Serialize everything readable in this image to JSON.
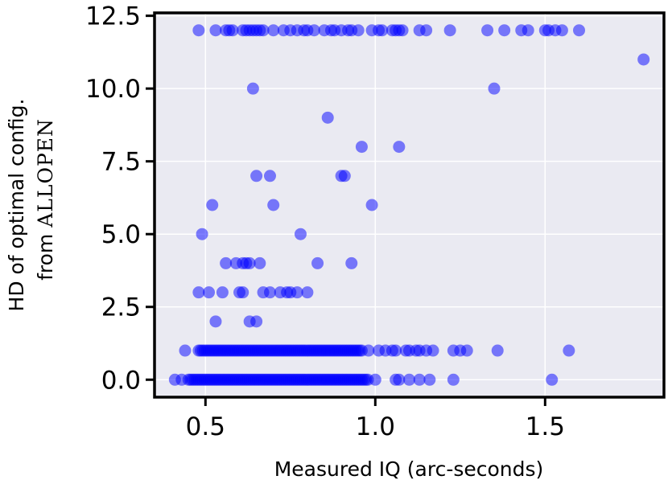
{
  "chart_data": {
    "type": "scatter",
    "xlabel": "Measured IQ (arc-seconds)",
    "ylabel_line1": "HD of optimal config.",
    "ylabel_line2_prefix": "from ",
    "ylabel_line2_name": "ALLOPEN",
    "xlim": [
      0.35,
      1.85
    ],
    "ylim": [
      -0.6,
      12.6
    ],
    "xticks": [
      0.5,
      1.0,
      1.5
    ],
    "xtick_labels": [
      "0.5",
      "1.0",
      "1.5"
    ],
    "yticks": [
      0.0,
      2.5,
      5.0,
      7.5,
      10.0,
      12.5
    ],
    "ytick_labels": [
      "0.0",
      "2.5",
      "5.0",
      "7.5",
      "10.0",
      "12.5"
    ],
    "grid": true,
    "background_color": "#eaeaf2",
    "grid_color": "#ffffff",
    "marker_color": "#0000ff",
    "marker_alpha": 0.5,
    "series": [
      {
        "points": [
          [
            0.48,
            12
          ],
          [
            0.53,
            12
          ],
          [
            0.56,
            12
          ],
          [
            0.57,
            12
          ],
          [
            0.58,
            12
          ],
          [
            0.61,
            12
          ],
          [
            0.62,
            12
          ],
          [
            0.63,
            12
          ],
          [
            0.64,
            12
          ],
          [
            0.65,
            12
          ],
          [
            0.66,
            12
          ],
          [
            0.67,
            12
          ],
          [
            0.7,
            12
          ],
          [
            0.73,
            12
          ],
          [
            0.75,
            12
          ],
          [
            0.77,
            12
          ],
          [
            0.79,
            12
          ],
          [
            0.8,
            12
          ],
          [
            0.82,
            12
          ],
          [
            0.85,
            12
          ],
          [
            0.87,
            12
          ],
          [
            0.88,
            12
          ],
          [
            0.9,
            12
          ],
          [
            0.92,
            12
          ],
          [
            0.93,
            12
          ],
          [
            0.95,
            12
          ],
          [
            0.99,
            12
          ],
          [
            1.01,
            12
          ],
          [
            1.02,
            12
          ],
          [
            1.05,
            12
          ],
          [
            1.06,
            12
          ],
          [
            1.07,
            12
          ],
          [
            1.08,
            12
          ],
          [
            1.13,
            12
          ],
          [
            1.15,
            12
          ],
          [
            1.22,
            12
          ],
          [
            1.33,
            12
          ],
          [
            1.38,
            12
          ],
          [
            1.43,
            12
          ],
          [
            1.45,
            12
          ],
          [
            1.5,
            12
          ],
          [
            1.51,
            12
          ],
          [
            1.53,
            12
          ],
          [
            1.55,
            12
          ],
          [
            1.6,
            12
          ],
          [
            1.79,
            11
          ],
          [
            0.64,
            10
          ],
          [
            1.35,
            10
          ],
          [
            0.86,
            9
          ],
          [
            0.96,
            8
          ],
          [
            1.07,
            8
          ],
          [
            0.65,
            7
          ],
          [
            0.69,
            7
          ],
          [
            0.9,
            7
          ],
          [
            0.91,
            7
          ],
          [
            0.52,
            6
          ],
          [
            0.7,
            6
          ],
          [
            0.99,
            6
          ],
          [
            0.49,
            5
          ],
          [
            0.78,
            5
          ],
          [
            0.56,
            4
          ],
          [
            0.59,
            4
          ],
          [
            0.61,
            4
          ],
          [
            0.62,
            4
          ],
          [
            0.63,
            4
          ],
          [
            0.66,
            4
          ],
          [
            0.83,
            4
          ],
          [
            0.93,
            4
          ],
          [
            0.48,
            3
          ],
          [
            0.51,
            3
          ],
          [
            0.55,
            3
          ],
          [
            0.6,
            3
          ],
          [
            0.61,
            3
          ],
          [
            0.67,
            3
          ],
          [
            0.69,
            3
          ],
          [
            0.72,
            3
          ],
          [
            0.74,
            3
          ],
          [
            0.75,
            3
          ],
          [
            0.77,
            3
          ],
          [
            0.8,
            3
          ],
          [
            0.53,
            2
          ],
          [
            0.63,
            2
          ],
          [
            0.65,
            2
          ]
        ]
      },
      {
        "dense_rows": [
          {
            "y": 1,
            "x_min": 0.48,
            "x_max": 0.96,
            "step": 0.006
          },
          {
            "y": 0,
            "x_min": 0.45,
            "x_max": 0.98,
            "step": 0.006
          }
        ],
        "points": [
          [
            0.44,
            1
          ],
          [
            0.98,
            1
          ],
          [
            1.01,
            1
          ],
          [
            1.03,
            1
          ],
          [
            1.05,
            1
          ],
          [
            1.06,
            1
          ],
          [
            1.09,
            1
          ],
          [
            1.1,
            1
          ],
          [
            1.12,
            1
          ],
          [
            1.13,
            1
          ],
          [
            1.15,
            1
          ],
          [
            1.17,
            1
          ],
          [
            1.23,
            1
          ],
          [
            1.25,
            1
          ],
          [
            1.27,
            1
          ],
          [
            1.36,
            1
          ],
          [
            1.57,
            1
          ],
          [
            0.41,
            0
          ],
          [
            0.43,
            0
          ],
          [
            1.0,
            0
          ],
          [
            1.06,
            0
          ],
          [
            1.07,
            0
          ],
          [
            1.1,
            0
          ],
          [
            1.13,
            0
          ],
          [
            1.16,
            0
          ],
          [
            1.23,
            0
          ],
          [
            1.52,
            0
          ]
        ]
      }
    ]
  }
}
